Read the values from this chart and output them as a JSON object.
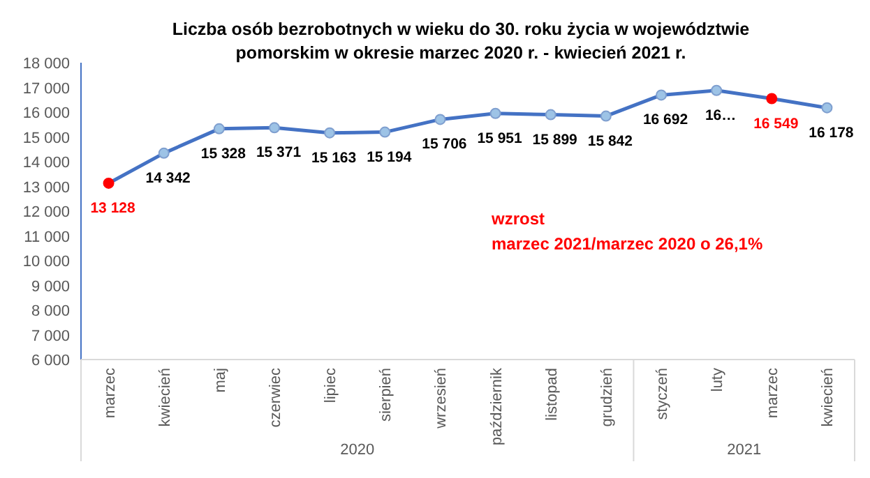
{
  "chart_data": {
    "type": "line",
    "title": "Liczba osób bezrobotnych w wieku do 30. roku życia w województwie\npomorskim w okresie marzec 2020  r. - kwiecień 2021 r.",
    "categories": [
      "marzec",
      "kwiecień",
      "maj",
      "czerwiec",
      "lipiec",
      "sierpień",
      "wrzesień",
      "październik",
      "listopad",
      "grudzień",
      "styczeń",
      "luty",
      "marzec",
      "kwiecień"
    ],
    "series": [
      {
        "color": "#4472c4",
        "values": [
          13128,
          14342,
          15328,
          15371,
          15163,
          15194,
          15706,
          15951,
          15899,
          15842,
          16692,
          16880,
          16549,
          16178
        ],
        "colors": [
          "#ff0000",
          "#9dc3e6",
          "#9dc3e6",
          "#9dc3e6",
          "#9dc3e6",
          "#9dc3e6",
          "#9dc3e6",
          "#9dc3e6",
          "#9dc3e6",
          "#9dc3e6",
          "#9dc3e6",
          "#9dc3e6",
          "#ff0000",
          "#9dc3e6"
        ],
        "value_labels": [
          "13 128",
          "14 342",
          "15 328",
          "15 371",
          "15 163",
          "15 194",
          "15 706",
          "15 951",
          "15 899",
          "15 842",
          "16 692",
          "16…",
          "16 549",
          "16 178"
        ]
      }
    ],
    "ylim": [
      6000,
      18000
    ],
    "yticks": [
      {
        "value": 6000,
        "label": "6 000"
      },
      {
        "value": 7000,
        "label": "7 000"
      },
      {
        "value": 8000,
        "label": "8 000"
      },
      {
        "value": 9000,
        "label": "9 000"
      },
      {
        "value": 10000,
        "label": "10 000"
      },
      {
        "value": 11000,
        "label": "11 000"
      },
      {
        "value": 12000,
        "label": "12 000"
      },
      {
        "value": 13000,
        "label": "13 000"
      },
      {
        "value": 14000,
        "label": "14 000"
      },
      {
        "value": 15000,
        "label": "15 000"
      },
      {
        "value": 16000,
        "label": "16 000"
      },
      {
        "value": 17000,
        "label": "17 000"
      },
      {
        "value": 18000,
        "label": "18 000"
      }
    ],
    "marker": "circle",
    "line_style": "solid",
    "annotations": [
      "wzrost\nmarzec 2021/marzec 2020  o 26,1%",
      "2020",
      "2021"
    ]
  }
}
